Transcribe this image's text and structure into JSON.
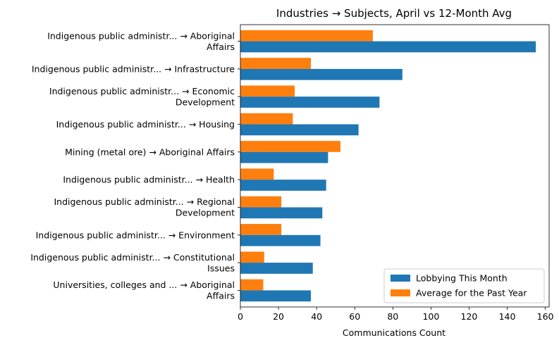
{
  "chart_data": {
    "type": "bar",
    "orientation": "horizontal",
    "title": "Industries → Subjects, April vs 12-Month Avg",
    "xlabel": "Communications Count",
    "ylabel": "",
    "xlim": [
      0,
      162
    ],
    "xticks": [
      0,
      20,
      40,
      60,
      80,
      100,
      120,
      140,
      160
    ],
    "grid": false,
    "legend_position": "lower-right",
    "categories": [
      [
        "Indigenous public administr... → Aboriginal",
        "Affairs"
      ],
      [
        "Indigenous public administr... → Infrastructure"
      ],
      [
        "Indigenous public administr... → Economic",
        "Development"
      ],
      [
        "Indigenous public administr... → Housing"
      ],
      [
        "Mining (metal ore) → Aboriginal Affairs"
      ],
      [
        "Indigenous public administr... → Health"
      ],
      [
        "Indigenous public administr... → Regional",
        "Development"
      ],
      [
        "Indigenous public administr... → Environment"
      ],
      [
        "Indigenous public administr... → Constitutional",
        "Issues"
      ],
      [
        "Universities, colleges and ... → Aboriginal",
        "Affairs"
      ]
    ],
    "series": [
      {
        "name": "Lobbying This Month",
        "color": "#1f77b4",
        "values": [
          155,
          85,
          73,
          62,
          46,
          45,
          43,
          42,
          38,
          37
        ]
      },
      {
        "name": "Average for the Past Year",
        "color": "#ff7f0e",
        "values": [
          69.5,
          37,
          28.5,
          27.5,
          52.5,
          17.5,
          21.5,
          21.5,
          12.5,
          12
        ]
      }
    ]
  }
}
